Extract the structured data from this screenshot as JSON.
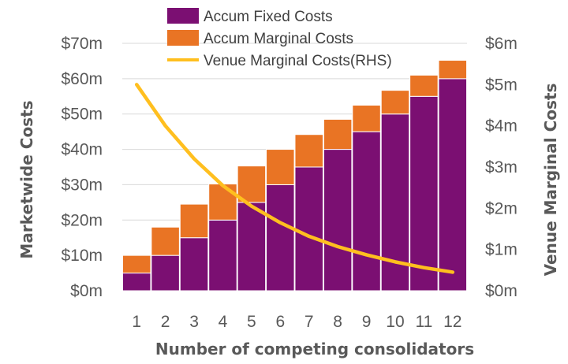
{
  "chart_data": {
    "type": "bar",
    "stacked": true,
    "categories": [
      "1",
      "2",
      "3",
      "4",
      "5",
      "6",
      "7",
      "8",
      "9",
      "10",
      "11",
      "12"
    ],
    "series": [
      {
        "name": "Accum Fixed Costs",
        "type": "bar",
        "axis": "left",
        "color": "#7B0F72",
        "values": [
          5,
          10,
          15,
          20,
          25,
          30,
          35,
          40,
          45,
          50,
          55,
          60
        ]
      },
      {
        "name": "Accum Marginal Costs",
        "type": "bar",
        "axis": "left",
        "color": "#E97424",
        "values": [
          5,
          8,
          9.5,
          10.2,
          10.3,
          10,
          9.2,
          8.5,
          7.5,
          6.7,
          6,
          5.2
        ]
      },
      {
        "name": "Venue Marginal Costs(RHS)",
        "type": "line",
        "axis": "right",
        "color": "#FFBF1F",
        "values": [
          5.0,
          4.0,
          3.2,
          2.55,
          2.05,
          1.65,
          1.32,
          1.07,
          0.87,
          0.7,
          0.56,
          0.45
        ]
      }
    ],
    "xlabel": "Number of competing consolidators",
    "ylabel": "Marketwide Costs",
    "y2label": "Venue Marginal Costs",
    "ylim": [
      0,
      70
    ],
    "y2lim": [
      0,
      6
    ],
    "yticks": [
      "$0m",
      "$10m",
      "$20m",
      "$30m",
      "$40m",
      "$50m",
      "$60m",
      "$70m"
    ],
    "y2ticks": [
      "$0m",
      "$1m",
      "$2m",
      "$3m",
      "$4m",
      "$5m",
      "$6m"
    ],
    "grid": true,
    "legend": "top-center"
  }
}
